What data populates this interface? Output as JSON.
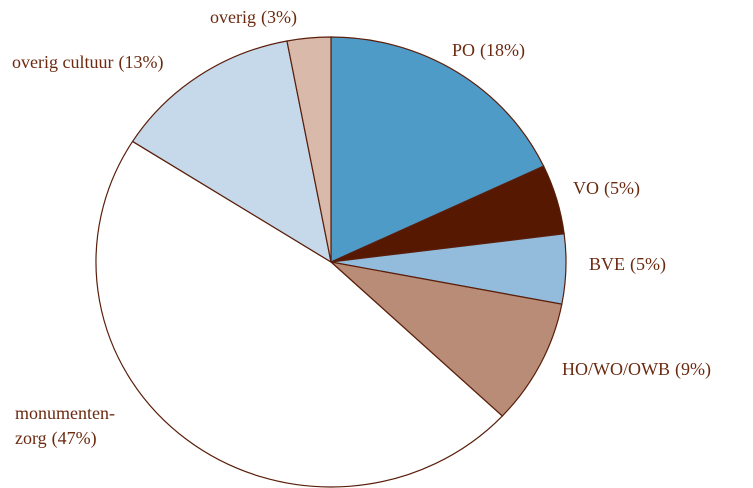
{
  "chart_data": {
    "type": "pie",
    "categories": [
      "PO",
      "VO",
      "BVE",
      "HO/WO/OWB",
      "monumenten-\nzorg",
      "overig cultuur",
      "overig"
    ],
    "values": [
      18,
      5,
      5,
      9,
      47,
      13,
      3
    ],
    "value_labels": [
      "(18%)",
      "(5%)",
      "(5%)",
      "(9%)",
      "(47%)",
      "(13%)",
      "(3%)"
    ],
    "colors": [
      "#4f9bc7",
      "#561800",
      "#93bcdc",
      "#b88c76",
      "#ffffff",
      "#c5d9ea",
      "#d9b9aa"
    ]
  }
}
